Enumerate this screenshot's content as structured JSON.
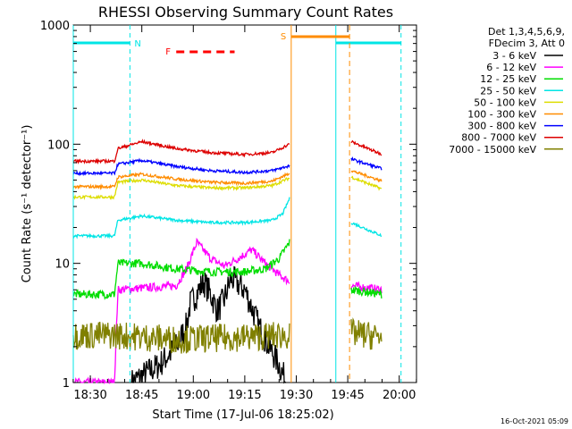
{
  "chart_data": {
    "type": "line",
    "title": "RHESSI Observing Summary Count Rates",
    "xlabel": "Start Time (17-Jul-06 18:25:02)",
    "ylabel": "Count Rate (s⁻¹ detector⁻¹)",
    "yscale": "log",
    "ylim": [
      1,
      1000
    ],
    "xlim_minutes_after_1825": [
      0,
      100
    ],
    "x_ticks": [
      "18:30",
      "18:45",
      "19:00",
      "19:15",
      "19:30",
      "19:45",
      "20:00"
    ],
    "y_ticks": [
      "1",
      "10",
      "100",
      "1000"
    ],
    "timestamp": "16-Oct-2021 05:09",
    "legend_header": [
      "Det 1,3,4,5,6,9,",
      "FDecim 3, Att 0"
    ],
    "legend": [
      {
        "label": "3 - 6 keV",
        "color": "#000000"
      },
      {
        "label": "6 - 12 keV",
        "color": "#ff00ff"
      },
      {
        "label": "12 - 25 keV",
        "color": "#00dd00"
      },
      {
        "label": "25 - 50 keV",
        "color": "#00e5e5"
      },
      {
        "label": "50 - 100 keV",
        "color": "#dddd00"
      },
      {
        "label": "100 - 300 keV",
        "color": "#ff8c00"
      },
      {
        "label": "300 - 800 keV",
        "color": "#0000ff"
      },
      {
        "label": "800 - 7000 keV",
        "color": "#dd0000"
      },
      {
        "label": "7000 - 15000 keV",
        "color": "#808000"
      }
    ],
    "flag_labels": {
      "night": "N",
      "flare": "F",
      "saa": "S"
    },
    "series": [
      {
        "name": "3 - 6 keV",
        "color": "#000000",
        "gaps": [
          [
            0,
            17
          ]
        ],
        "x": [
          17,
          25,
          30,
          33,
          34,
          38,
          40,
          42,
          44,
          46,
          50,
          54,
          57,
          60,
          62
        ],
        "values": [
          1.0,
          1.4,
          2.0,
          3.0,
          4.5,
          7.0,
          5.5,
          4.0,
          5.0,
          7.5,
          6.0,
          3.0,
          2.0,
          1.4,
          1.0
        ]
      },
      {
        "name": "6 - 12 keV",
        "color": "#ff00ff",
        "x": [
          0,
          12,
          13,
          20,
          30,
          33,
          36,
          40,
          44,
          48,
          52,
          56,
          60,
          63
        ],
        "values": [
          1.0,
          1.0,
          6.0,
          6.2,
          6.5,
          9.0,
          15.0,
          11.0,
          9.5,
          11.0,
          13.0,
          10.0,
          8.0,
          7.0
        ]
      },
      {
        "name": "12 - 25 keV",
        "color": "#00dd00",
        "x": [
          0,
          12,
          13,
          20,
          30,
          40,
          50,
          56,
          60,
          63
        ],
        "values": [
          5.5,
          5.5,
          10.0,
          10.0,
          9.0,
          8.5,
          8.5,
          9.0,
          11.0,
          15.0
        ]
      },
      {
        "name": "25 - 50 keV",
        "color": "#00e5e5",
        "x": [
          0,
          12,
          13,
          20,
          30,
          40,
          50,
          58,
          61,
          63
        ],
        "values": [
          17.0,
          17.0,
          23.0,
          25.0,
          23.0,
          22.0,
          22.0,
          23.0,
          26.0,
          35.0
        ]
      },
      {
        "name": "50 - 100 keV",
        "color": "#dddd00",
        "x": [
          0,
          12,
          13,
          20,
          30,
          40,
          50,
          58,
          63
        ],
        "values": [
          36.0,
          36.0,
          48.0,
          50.0,
          45.0,
          43.0,
          43.0,
          45.0,
          52.0
        ]
      },
      {
        "name": "100 - 300 keV",
        "color": "#ff8c00",
        "x": [
          0,
          12,
          13,
          20,
          30,
          40,
          50,
          58,
          63
        ],
        "values": [
          44.0,
          44.0,
          53.0,
          56.0,
          51.0,
          48.0,
          47.0,
          49.0,
          57.0
        ]
      },
      {
        "name": "300 - 800 keV",
        "color": "#0000ff",
        "x": [
          0,
          12,
          13,
          20,
          30,
          40,
          50,
          58,
          63
        ],
        "values": [
          57.0,
          57.0,
          68.0,
          73.0,
          65.0,
          60.0,
          58.0,
          60.0,
          66.0
        ]
      },
      {
        "name": "800 - 7000 keV",
        "color": "#dd0000",
        "x": [
          0,
          12,
          13,
          20,
          30,
          40,
          50,
          58,
          63
        ],
        "values": [
          72.0,
          72.0,
          92.0,
          105.0,
          92.0,
          85.0,
          82.0,
          85.0,
          100.0
        ]
      },
      {
        "name": "7000 - 15000 keV",
        "color": "#808000",
        "x": [
          0,
          12,
          30,
          50,
          63
        ],
        "values": [
          2.5,
          2.5,
          2.3,
          2.4,
          2.5
        ]
      }
    ],
    "after_saa": {
      "x": [
        81,
        90
      ],
      "series_values": {
        "6 - 12 keV": [
          6.5,
          6.0
        ],
        "12 - 25 keV": [
          6.0,
          5.5
        ],
        "25 - 50 keV": [
          22.0,
          17.0
        ],
        "50 - 100 keV": [
          53.0,
          42.0
        ],
        "100 - 300 keV": [
          60.0,
          49.0
        ],
        "300 - 800 keV": [
          75.0,
          62.0
        ],
        "800 - 7000 keV": [
          105.0,
          82.0
        ],
        "7000 - 15000 keV": [
          2.6,
          2.4
        ]
      }
    },
    "night_intervals_minutes": [
      [
        0,
        16.5
      ],
      [
        76.5,
        95.5
      ]
    ],
    "flare_interval_minutes": [
      30,
      47
    ],
    "saa_interval_minutes": [
      63.5,
      80.5
    ]
  }
}
